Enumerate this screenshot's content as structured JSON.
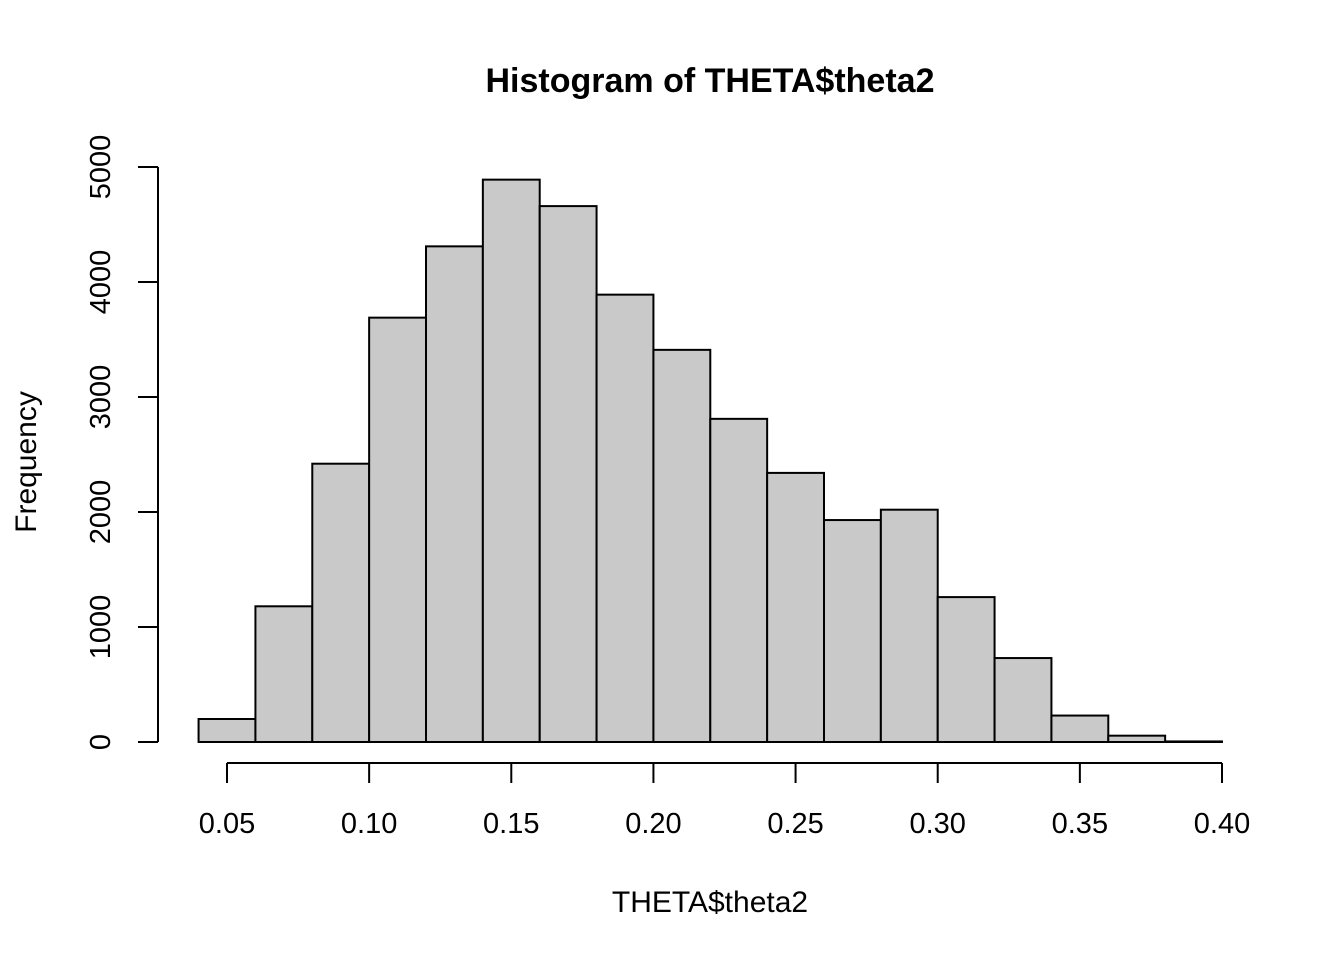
{
  "chart_data": {
    "type": "bar",
    "title": "Histogram of THETA$theta2",
    "xlabel": "THETA$theta2",
    "ylabel": "Frequency",
    "bin_edges": [
      0.04,
      0.06,
      0.08,
      0.1,
      0.12,
      0.14,
      0.16,
      0.18,
      0.2,
      0.22,
      0.24,
      0.26,
      0.28,
      0.3,
      0.32,
      0.34,
      0.36,
      0.38,
      0.4
    ],
    "values": [
      200,
      1180,
      2420,
      3690,
      4310,
      4890,
      4660,
      3890,
      3410,
      2810,
      2340,
      1930,
      2020,
      1260,
      730,
      230,
      55,
      5
    ],
    "xlim": [
      0.05,
      0.4
    ],
    "ylim": [
      0,
      5000
    ],
    "x_ticks": [
      "0.05",
      "0.10",
      "0.15",
      "0.20",
      "0.25",
      "0.30",
      "0.35",
      "0.40"
    ],
    "y_ticks": [
      "0",
      "1000",
      "2000",
      "3000",
      "4000",
      "5000"
    ],
    "grid": false,
    "legend": "none",
    "bar_color": "#c9c9c9",
    "edge_color": "#000000"
  }
}
